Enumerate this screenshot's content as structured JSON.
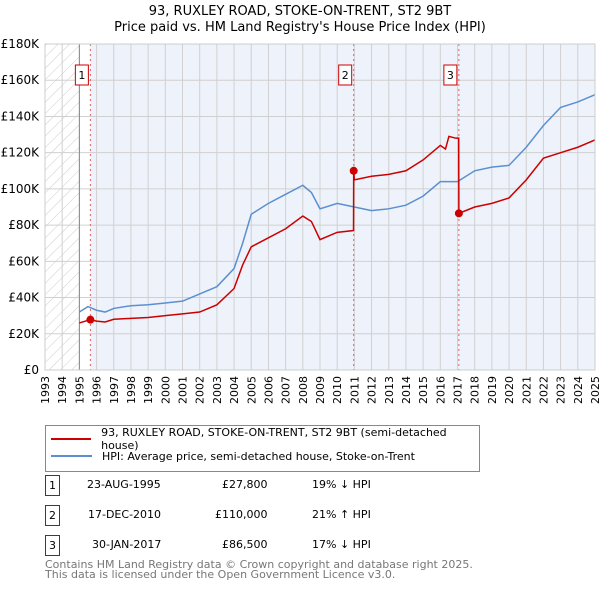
{
  "title": "93, RUXLEY ROAD, STOKE-ON-TRENT, ST2 9BT",
  "subtitle": "Price paid vs. HM Land Registry's House Price Index (HPI)",
  "chart_data": {
    "type": "line",
    "xlim": [
      1993,
      2025
    ],
    "ylim": [
      0,
      180000
    ],
    "x_ticks": [
      "1993",
      "1994",
      "1995",
      "1996",
      "1997",
      "1998",
      "1999",
      "2000",
      "2001",
      "2002",
      "2003",
      "2004",
      "2005",
      "2006",
      "2007",
      "2008",
      "2009",
      "2010",
      "2011",
      "2012",
      "2013",
      "2014",
      "2015",
      "2016",
      "2017",
      "2018",
      "2019",
      "2020",
      "2021",
      "2022",
      "2023",
      "2024",
      "2025"
    ],
    "y_ticks": [
      {
        "v": 0,
        "label": "£0"
      },
      {
        "v": 20000,
        "label": "£20K"
      },
      {
        "v": 40000,
        "label": "£40K"
      },
      {
        "v": 60000,
        "label": "£60K"
      },
      {
        "v": 80000,
        "label": "£80K"
      },
      {
        "v": 100000,
        "label": "£100K"
      },
      {
        "v": 120000,
        "label": "£120K"
      },
      {
        "v": 140000,
        "label": "£140K"
      },
      {
        "v": 160000,
        "label": "£160K"
      },
      {
        "v": 180000,
        "label": "£180K"
      }
    ],
    "series": [
      {
        "name": "93, RUXLEY ROAD, STOKE-ON-TRENT, ST2 9BT (semi-detached house)",
        "color": "#cc0000",
        "x": [
          1995,
          1995.64,
          1996,
          1996.5,
          1997,
          1998,
          1999,
          2000,
          2001,
          2002,
          2003,
          2004,
          2004.5,
          2005,
          2006,
          2007,
          2008,
          2008.5,
          2009,
          2010,
          2010.95,
          2010.96,
          2011,
          2012,
          2013,
          2014,
          2015,
          2016,
          2016.3,
          2016.5,
          2016.9,
          2017.07,
          2017.08,
          2018,
          2019,
          2020,
          2021,
          2022,
          2023,
          2024,
          2025
        ],
        "y": [
          26000,
          27800,
          27000,
          26500,
          28000,
          28500,
          29000,
          30000,
          31000,
          32000,
          36000,
          45000,
          58000,
          68000,
          73000,
          78000,
          85000,
          82000,
          72000,
          76000,
          77000,
          110000,
          105000,
          107000,
          108000,
          110000,
          116000,
          124000,
          122000,
          129000,
          128000,
          128000,
          86500,
          90000,
          92000,
          95000,
          105000,
          117000,
          120000,
          123000,
          127000
        ]
      },
      {
        "name": "HPI: Average price, semi-detached house, Stoke-on-Trent",
        "color": "#5b8fd0",
        "x": [
          1995,
          1995.5,
          1996,
          1996.5,
          1997,
          1998,
          1999,
          2000,
          2001,
          2002,
          2003,
          2004,
          2004.5,
          2005,
          2006,
          2007,
          2008,
          2008.5,
          2009,
          2010,
          2011,
          2012,
          2013,
          2014,
          2015,
          2016,
          2017,
          2018,
          2019,
          2020,
          2021,
          2022,
          2023,
          2024,
          2025
        ],
        "y": [
          32000,
          35000,
          33000,
          32000,
          34000,
          35500,
          36000,
          37000,
          38000,
          42000,
          46000,
          56000,
          70000,
          86000,
          92000,
          97000,
          102000,
          98000,
          89000,
          92000,
          90000,
          88000,
          89000,
          91000,
          96000,
          104000,
          104000,
          110000,
          112000,
          113000,
          123000,
          135000,
          145000,
          148000,
          152000
        ]
      }
    ],
    "sales": [
      {
        "n": "1",
        "x": 1995.64,
        "y": 27800
      },
      {
        "n": "2",
        "x": 2010.96,
        "y": 110000
      },
      {
        "n": "3",
        "x": 2017.08,
        "y": 86500
      }
    ]
  },
  "legend": {
    "property": "93, RUXLEY ROAD, STOKE-ON-TRENT, ST2 9BT (semi-detached house)",
    "hpi": "HPI: Average price, semi-detached house, Stoke-on-Trent"
  },
  "transactions": [
    {
      "n": "1",
      "date": "23-AUG-1995",
      "price": "£27,800",
      "hpi": "19% ↓ HPI"
    },
    {
      "n": "2",
      "date": "17-DEC-2010",
      "price": "£110,000",
      "hpi": "21% ↑ HPI"
    },
    {
      "n": "3",
      "date": "30-JAN-2017",
      "price": "£86,500",
      "hpi": "17% ↓ HPI"
    }
  ],
  "footer": [
    "Contains HM Land Registry data © Crown copyright and database right 2025.",
    "This data is licensed under the Open Government Licence v3.0."
  ]
}
